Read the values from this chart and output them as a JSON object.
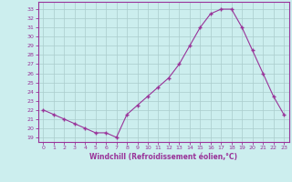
{
  "x": [
    0,
    1,
    2,
    3,
    4,
    5,
    6,
    7,
    8,
    9,
    10,
    11,
    12,
    13,
    14,
    15,
    16,
    17,
    18,
    19,
    20,
    21,
    22,
    23
  ],
  "y": [
    22.0,
    21.5,
    21.0,
    20.5,
    20.0,
    19.5,
    19.5,
    19.0,
    21.5,
    22.5,
    23.5,
    24.5,
    25.5,
    27.0,
    29.0,
    31.0,
    32.5,
    33.0,
    33.0,
    31.0,
    28.5,
    26.0,
    23.5,
    21.5
  ],
  "line_color": "#993399",
  "marker": "+",
  "marker_size": 3,
  "marker_lw": 1.0,
  "bg_color": "#cceeee",
  "grid_color": "#aacccc",
  "xlabel": "Windchill (Refroidissement éolien,°C)",
  "ylabel_ticks": [
    19,
    20,
    21,
    22,
    23,
    24,
    25,
    26,
    27,
    28,
    29,
    30,
    31,
    32,
    33
  ],
  "xlim": [
    -0.5,
    23.5
  ],
  "ylim": [
    18.5,
    33.8
  ],
  "tick_color": "#993399",
  "label_color": "#993399",
  "axis_color": "#993399",
  "line_width": 0.8,
  "xlabel_fontsize": 5.5,
  "tick_fontsize": 4.5
}
